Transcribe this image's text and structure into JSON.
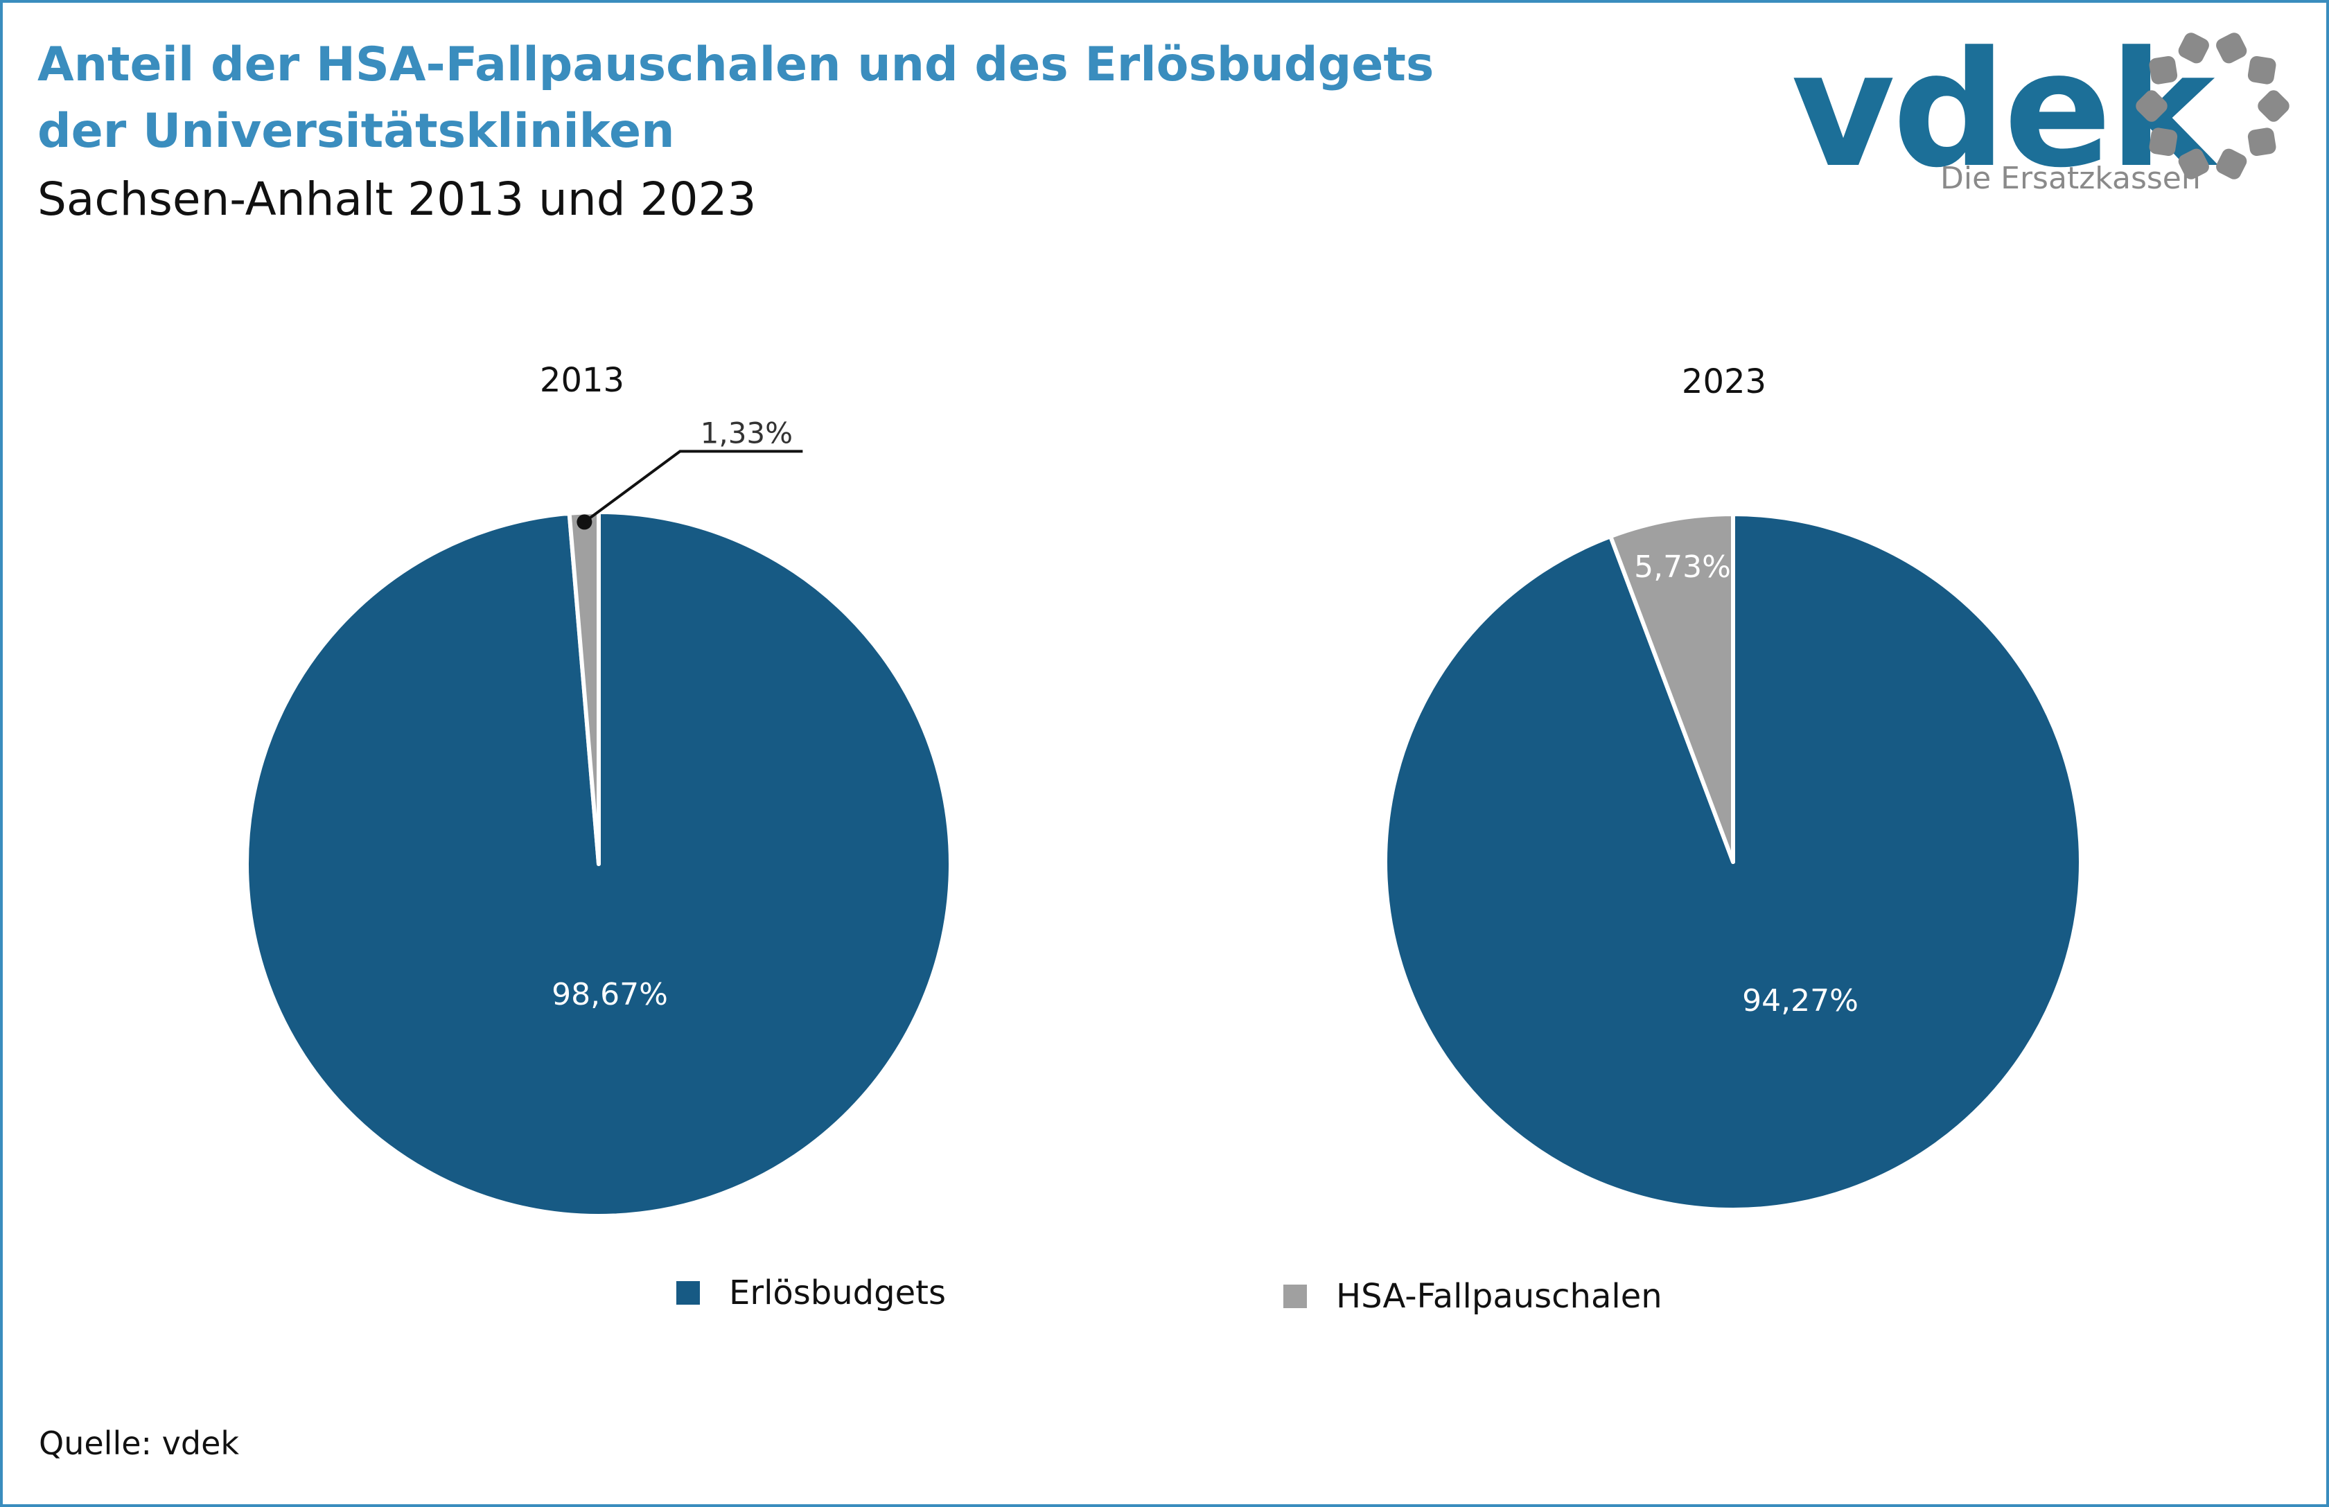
{
  "header": {
    "title_line1": "Anteil der HSA-Fallpauschalen und des Erlösbudgets",
    "title_line2": "der Universitätskliniken",
    "subtitle": "Sachsen-Anhalt 2013 und 2023"
  },
  "logo": {
    "word": "vdek",
    "tagline": "Die Ersatzkassen",
    "icon": "dotted-ring-icon"
  },
  "colors": {
    "title": "#3a8dbe",
    "erloesbudgets": "#175a84",
    "hsa": "#a0a0a0",
    "frame": "#3a8dbe"
  },
  "chart_data": [
    {
      "type": "pie",
      "title": "2013",
      "slices": [
        {
          "name": "Erlösbudgets",
          "value": 98.67,
          "label": "98,67%"
        },
        {
          "name": "HSA-Fallpauschalen",
          "value": 1.33,
          "label": "1,33%"
        }
      ]
    },
    {
      "type": "pie",
      "title": "2023",
      "slices": [
        {
          "name": "Erlösbudgets",
          "value": 94.27,
          "label": "94,27%"
        },
        {
          "name": "HSA-Fallpauschalen",
          "value": 5.73,
          "label": "5,73%"
        }
      ]
    }
  ],
  "legend": {
    "placement": "bottom",
    "items": [
      {
        "label": "Erlösbudgets"
      },
      {
        "label": "HSA-Fallpauschalen"
      }
    ]
  },
  "footer": {
    "source": "Quelle: vdek"
  }
}
